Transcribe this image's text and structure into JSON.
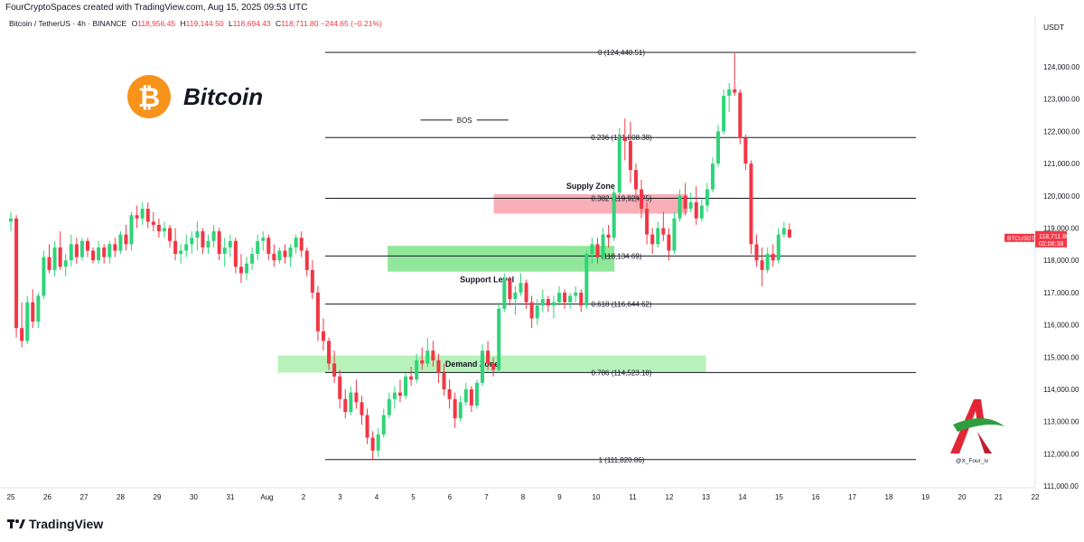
{
  "credit": "FourCryptoSpaces created with TradingView.com, Aug 15, 2025 09:53 UTC",
  "legend": {
    "symbol": "Bitcoin / TetherUS · 4h · BINANCE",
    "o_label": "O",
    "o": "118,956.45",
    "h_label": "H",
    "h": "119,144.50",
    "l_label": "L",
    "l": "118,694.43",
    "c_label": "C",
    "c": "118,711.80",
    "change": "−244.65 (−0.21%)"
  },
  "currency": "USDT",
  "brand": "TradingView",
  "logo_text": "Bitcoin",
  "watermark": "@X_Four_iv",
  "colors": {
    "up": "#22ab94",
    "up_fill": "#2fd47a",
    "down": "#f23645",
    "text": "#131722",
    "supply": "#f7a1a8",
    "support": "#7ee387"
  },
  "chart_data": {
    "type": "candlestick",
    "title": "",
    "ylabel": "",
    "xlabel": "",
    "ylim": [
      111000,
      124800
    ],
    "y_ticks": [
      "124,000.00",
      "123,000.00",
      "122,000.00",
      "121,000.00",
      "120,000.00",
      "119,000.00",
      "118,000.00",
      "117,000.00",
      "116,000.00",
      "115,000.00",
      "114,000.00",
      "113,000.00",
      "112,000.00",
      "111,000.00"
    ],
    "x_ticks": [
      "25",
      "26",
      "27",
      "28",
      "29",
      "30",
      "31",
      "Aug",
      "2",
      "3",
      "4",
      "5",
      "6",
      "7",
      "8",
      "9",
      "10",
      "11",
      "12",
      "13",
      "14",
      "15",
      "16",
      "17",
      "18",
      "19",
      "20",
      "21",
      "22"
    ],
    "price_tag": {
      "symbol": "BTCUSDT",
      "price": "118,711.80",
      "countdown": "02:06:38",
      "value": 118711.8
    },
    "fib_levels": [
      {
        "label": "0 (124,448.51)",
        "value": 124448.51
      },
      {
        "label": "0.236 (121,808.38)",
        "value": 121808.38
      },
      {
        "label": "0.382 (119,924.75)",
        "value": 119924.75
      },
      {
        "label": "(118,134.69)",
        "value": 118134.69
      },
      {
        "label": "0.618 (116,644.62)",
        "value": 116644.62
      },
      {
        "label": "0.786 (114,523.18)",
        "value": 114523.18
      },
      {
        "label": "1 (111,820.86)",
        "value": 111820.86
      }
    ],
    "zones": [
      {
        "name": "Supply Zone",
        "low": 119450,
        "high": 120050,
        "from": 13.2,
        "to": 18.5,
        "color": "#f7a1a8"
      },
      {
        "name": "Support Level",
        "low": 117650,
        "high": 118450,
        "from": 10.3,
        "to": 16.5,
        "color": "#7ee387"
      },
      {
        "name": "Demand Zone",
        "low": 114520,
        "high": 115050,
        "from": 7.3,
        "to": 19.0,
        "color": "#aaf0ae"
      }
    ],
    "bos": {
      "label": "BOS",
      "value": 122350,
      "from": 11.2,
      "to": 13.6
    },
    "candles": [
      [
        0,
        119200,
        119500,
        118900,
        119300
      ],
      [
        1,
        119300,
        119400,
        115600,
        115900
      ],
      [
        2,
        115900,
        116700,
        115300,
        115500
      ],
      [
        3,
        115500,
        116900,
        115400,
        116700
      ],
      [
        4,
        116700,
        117100,
        115900,
        116100
      ],
      [
        5,
        116100,
        117000,
        115900,
        116900
      ],
      [
        6,
        116900,
        118300,
        116800,
        118100
      ],
      [
        7,
        118100,
        118500,
        117600,
        117700
      ],
      [
        8,
        117700,
        118600,
        117500,
        118400
      ],
      [
        9,
        118400,
        118900,
        117700,
        117800
      ],
      [
        10,
        117800,
        118200,
        117500,
        118000
      ],
      [
        11,
        118000,
        118800,
        117800,
        118500
      ],
      [
        12,
        118500,
        118700,
        117900,
        118100
      ],
      [
        13,
        118100,
        118700,
        118000,
        118600
      ],
      [
        14,
        118600,
        118700,
        118100,
        118300
      ],
      [
        15,
        118300,
        118400,
        117900,
        118000
      ],
      [
        16,
        118000,
        118600,
        117900,
        118400
      ],
      [
        17,
        118400,
        118500,
        117900,
        118100
      ],
      [
        18,
        118100,
        118600,
        117900,
        118500
      ],
      [
        19,
        118500,
        118700,
        118100,
        118300
      ],
      [
        20,
        118300,
        118900,
        118200,
        118800
      ],
      [
        21,
        118800,
        119100,
        118300,
        118500
      ],
      [
        22,
        118500,
        119500,
        118300,
        119400
      ],
      [
        23,
        119400,
        119700,
        119000,
        119300
      ],
      [
        24,
        119300,
        119800,
        119100,
        119600
      ],
      [
        25,
        119600,
        119800,
        119000,
        119200
      ],
      [
        26,
        119200,
        119500,
        118900,
        119100
      ],
      [
        27,
        119100,
        119300,
        118700,
        118900
      ],
      [
        28,
        118900,
        119200,
        118700,
        119000
      ],
      [
        29,
        119000,
        119100,
        118400,
        118600
      ],
      [
        30,
        118600,
        119000,
        118000,
        118200
      ],
      [
        31,
        118200,
        118500,
        117900,
        118300
      ],
      [
        32,
        118300,
        118800,
        118100,
        118500
      ],
      [
        33,
        118500,
        118900,
        118200,
        118700
      ],
      [
        34,
        118700,
        119200,
        118300,
        118900
      ],
      [
        35,
        118900,
        119000,
        118200,
        118400
      ],
      [
        36,
        118400,
        118800,
        118200,
        118600
      ],
      [
        37,
        118600,
        119100,
        118400,
        118900
      ],
      [
        38,
        118900,
        119000,
        118000,
        118200
      ],
      [
        39,
        118200,
        118700,
        117800,
        118400
      ],
      [
        40,
        118400,
        118800,
        118100,
        118600
      ],
      [
        41,
        118600,
        118700,
        117600,
        117800
      ],
      [
        42,
        117800,
        118200,
        117300,
        117600
      ],
      [
        43,
        117600,
        118100,
        117400,
        117900
      ],
      [
        44,
        117900,
        118400,
        117700,
        118200
      ],
      [
        45,
        118200,
        118800,
        118000,
        118600
      ],
      [
        46,
        118600,
        118900,
        118300,
        118700
      ],
      [
        47,
        118700,
        118800,
        118000,
        118200
      ],
      [
        48,
        118200,
        118500,
        117800,
        118000
      ],
      [
        49,
        118000,
        118400,
        117900,
        118300
      ],
      [
        50,
        118300,
        118500,
        117900,
        118100
      ],
      [
        51,
        118100,
        118500,
        117800,
        118400
      ],
      [
        52,
        118400,
        118800,
        118200,
        118700
      ],
      [
        53,
        118700,
        118900,
        118100,
        118300
      ],
      [
        54,
        118300,
        118400,
        117500,
        117700
      ],
      [
        55,
        117700,
        118000,
        116800,
        117000
      ],
      [
        56,
        117000,
        117200,
        115500,
        115800
      ],
      [
        57,
        115800,
        116200,
        115200,
        115500
      ],
      [
        58,
        115500,
        115600,
        114600,
        114800
      ],
      [
        59,
        114800,
        115200,
        114200,
        114400
      ],
      [
        60,
        114400,
        114600,
        113400,
        113700
      ],
      [
        61,
        113700,
        114000,
        113100,
        113300
      ],
      [
        62,
        113300,
        114100,
        113200,
        113900
      ],
      [
        63,
        113900,
        114300,
        113400,
        113600
      ],
      [
        64,
        113600,
        113800,
        112900,
        113200
      ],
      [
        65,
        113200,
        113400,
        112300,
        112500
      ],
      [
        66,
        112500,
        112700,
        111800,
        112100
      ],
      [
        67,
        112100,
        112800,
        111900,
        112600
      ],
      [
        68,
        112600,
        113400,
        112500,
        113200
      ],
      [
        69,
        113200,
        113900,
        113100,
        113700
      ],
      [
        70,
        113700,
        114100,
        113400,
        113900
      ],
      [
        71,
        113900,
        114300,
        113600,
        113800
      ],
      [
        72,
        113800,
        114500,
        113700,
        114400
      ],
      [
        73,
        114400,
        114700,
        114100,
        114300
      ],
      [
        74,
        114300,
        115100,
        114200,
        114900
      ],
      [
        75,
        114900,
        115300,
        114600,
        114800
      ],
      [
        76,
        114800,
        115600,
        114700,
        115200
      ],
      [
        77,
        115200,
        115500,
        114700,
        114900
      ],
      [
        78,
        114900,
        115100,
        114200,
        114500
      ],
      [
        79,
        114500,
        114800,
        113800,
        114000
      ],
      [
        80,
        114000,
        114300,
        113400,
        113700
      ],
      [
        81,
        113700,
        113900,
        112800,
        113100
      ],
      [
        82,
        113100,
        113800,
        113000,
        113600
      ],
      [
        83,
        113600,
        114200,
        113500,
        114000
      ],
      [
        84,
        114000,
        114100,
        113300,
        113500
      ],
      [
        85,
        113500,
        114300,
        113400,
        114200
      ],
      [
        86,
        114200,
        115400,
        114100,
        115200
      ],
      [
        87,
        115200,
        115500,
        114600,
        114800
      ],
      [
        88,
        114800,
        115000,
        114400,
        114600
      ],
      [
        89,
        114600,
        116700,
        114500,
        116500
      ],
      [
        90,
        116500,
        117600,
        116400,
        117400
      ],
      [
        91,
        117400,
        117500,
        116600,
        116800
      ],
      [
        92,
        116800,
        117200,
        116300,
        117000
      ],
      [
        93,
        117000,
        117600,
        116900,
        117300
      ],
      [
        94,
        117300,
        117400,
        116500,
        116700
      ],
      [
        95,
        116700,
        116900,
        115900,
        116200
      ],
      [
        96,
        116200,
        116800,
        116000,
        116600
      ],
      [
        97,
        116600,
        117100,
        116400,
        116800
      ],
      [
        98,
        116800,
        116900,
        116400,
        116600
      ],
      [
        99,
        116600,
        116900,
        116200,
        116700
      ],
      [
        100,
        116700,
        117200,
        116600,
        117000
      ],
      [
        101,
        117000,
        117100,
        116500,
        116700
      ],
      [
        102,
        116700,
        117000,
        116500,
        116900
      ],
      [
        103,
        116900,
        117200,
        116700,
        117000
      ],
      [
        104,
        117000,
        117100,
        116400,
        116600
      ],
      [
        105,
        116600,
        118300,
        116500,
        118200
      ],
      [
        106,
        118200,
        118700,
        117900,
        118500
      ],
      [
        107,
        118500,
        118700,
        117900,
        118100
      ],
      [
        108,
        118100,
        119000,
        118000,
        118800
      ],
      [
        109,
        118800,
        119100,
        118400,
        118700
      ],
      [
        110,
        118700,
        120300,
        118600,
        120100
      ],
      [
        111,
        120100,
        122100,
        120000,
        121800
      ],
      [
        112,
        121800,
        122400,
        121100,
        121700
      ],
      [
        113,
        121700,
        122300,
        120400,
        120800
      ],
      [
        114,
        120800,
        121000,
        119800,
        120200
      ],
      [
        115,
        120200,
        120500,
        119300,
        119600
      ],
      [
        116,
        119600,
        119800,
        118500,
        118800
      ],
      [
        117,
        118800,
        119000,
        118200,
        118500
      ],
      [
        118,
        118500,
        119200,
        118400,
        119000
      ],
      [
        119,
        119000,
        119500,
        118600,
        118800
      ],
      [
        120,
        118800,
        119000,
        118000,
        118300
      ],
      [
        121,
        118300,
        119500,
        118200,
        119300
      ],
      [
        122,
        119300,
        120200,
        119200,
        120000
      ],
      [
        123,
        120000,
        120400,
        119400,
        119600
      ],
      [
        124,
        119600,
        120100,
        119500,
        119800
      ],
      [
        125,
        119800,
        120300,
        119100,
        119300
      ],
      [
        126,
        119300,
        119900,
        119200,
        119700
      ],
      [
        127,
        119700,
        120400,
        119500,
        120200
      ],
      [
        128,
        120200,
        121200,
        120100,
        121000
      ],
      [
        129,
        121000,
        122200,
        120900,
        122000
      ],
      [
        130,
        122000,
        123300,
        121900,
        123100
      ],
      [
        131,
        123100,
        123500,
        122600,
        123300
      ],
      [
        132,
        123300,
        124450,
        123100,
        123200
      ],
      [
        133,
        123200,
        123300,
        121600,
        121800
      ],
      [
        134,
        121800,
        121900,
        120800,
        121000
      ],
      [
        135,
        121000,
        121100,
        118200,
        118500
      ],
      [
        136,
        118500,
        118800,
        117800,
        118000
      ],
      [
        137,
        118000,
        118400,
        117200,
        117700
      ],
      [
        138,
        117700,
        118400,
        117600,
        118200
      ],
      [
        139,
        118200,
        118500,
        117800,
        118000
      ],
      [
        140,
        118000,
        119000,
        117900,
        118800
      ],
      [
        141,
        118800,
        119200,
        118700,
        119000
      ],
      [
        142,
        118956,
        119144,
        118694,
        118712
      ]
    ]
  }
}
